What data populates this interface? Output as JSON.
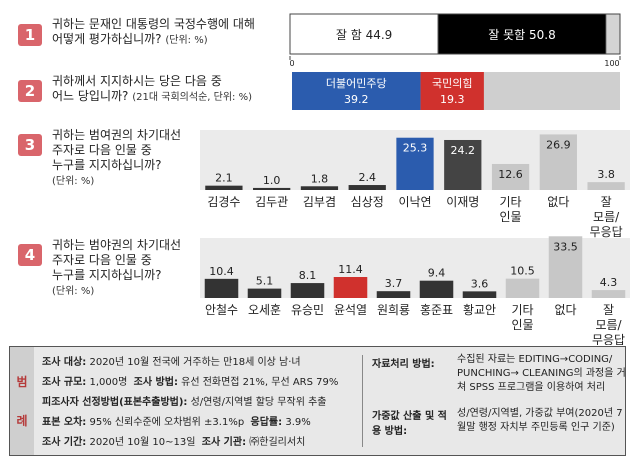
{
  "questions": [
    {
      "num": "1",
      "line1": "귀하는 문재인 대통령의 국정수행에 대해",
      "line2": "어떻게 평가하십니까?",
      "note": "(단위: %)"
    },
    {
      "num": "2",
      "line1": "귀하께서 지지하시는 당은 다음 중",
      "line2": "어느 당입니까?",
      "note": "(21대 국회의석순, 단위: %)"
    },
    {
      "num": "3",
      "line1": "귀하는 범여권의 차기대선",
      "line2": "주자로 다음 인물 중",
      "line3": "누구를 지지하십니까?",
      "note": "(단위: %)"
    },
    {
      "num": "4",
      "line1": "귀하는 범야권의 차기대선",
      "line2": "주자로 다음 인물 중",
      "line3": "누구를 지지하십니까?",
      "note": "(단위: %)"
    }
  ],
  "chart_data": [
    {
      "type": "bar",
      "orientation": "horizontal-stacked",
      "categories": [
        "잘 함",
        "잘 못함"
      ],
      "values": [
        44.9,
        50.8
      ],
      "axis_ticks": [
        "0",
        "100"
      ],
      "xlim": [
        0,
        100
      ],
      "colors": [
        "#ffffff",
        "#000000"
      ]
    },
    {
      "type": "bar",
      "orientation": "horizontal-stacked",
      "categories": [
        "더불어민주당",
        "국민의힘"
      ],
      "values": [
        39.2,
        19.3
      ],
      "xlim": [
        0,
        100
      ],
      "colors": [
        "#2b5cae",
        "#d0312d"
      ]
    },
    {
      "type": "bar",
      "categories": [
        "김경수",
        "김두관",
        "김부겸",
        "심상정",
        "이낙연",
        "이재명",
        "기타 인물",
        "없다",
        "잘 모름/ 무응답"
      ],
      "values": [
        2.1,
        1.0,
        1.8,
        2.4,
        25.3,
        24.2,
        12.6,
        26.9,
        3.8
      ],
      "value_labels": [
        "2.1",
        "1.0",
        "1.8",
        "2.4",
        "25.3",
        "24.2",
        "12.6",
        "26.9",
        "3.8"
      ],
      "ylim": [
        0,
        30
      ],
      "colors": [
        "#333333",
        "#333333",
        "#333333",
        "#333333",
        "#2b5cae",
        "#444444",
        "#c7c7c7",
        "#c7c7c7",
        "#c7c7c7"
      ],
      "label_colors": [
        "#222222",
        "#222222",
        "#222222",
        "#222222",
        "#ffffff",
        "#ffffff",
        "#222222",
        "#222222",
        "#222222"
      ]
    },
    {
      "type": "bar",
      "categories": [
        "안철수",
        "오세훈",
        "유승민",
        "윤석열",
        "원희룡",
        "홍준표",
        "황교안",
        "기타 인물",
        "없다",
        "잘 모름/ 무응답"
      ],
      "values": [
        10.4,
        5.1,
        8.1,
        11.4,
        3.7,
        9.4,
        3.6,
        10.5,
        33.5,
        4.3
      ],
      "value_labels": [
        "10.4",
        "5.1",
        "8.1",
        "11.4",
        "3.7",
        "9.4",
        "3.6",
        "10.5",
        "33.5",
        "4.3"
      ],
      "ylim": [
        0,
        38
      ],
      "colors": [
        "#333333",
        "#333333",
        "#333333",
        "#d0312d",
        "#333333",
        "#333333",
        "#333333",
        "#c7c7c7",
        "#c7c7c7",
        "#c7c7c7"
      ],
      "label_colors": [
        "#222222",
        "#222222",
        "#222222",
        "#222222",
        "#222222",
        "#222222",
        "#222222",
        "#222222",
        "#222222",
        "#222222"
      ]
    }
  ],
  "legend": {
    "tab_chars": [
      "범",
      "례"
    ],
    "left": [
      {
        "label": "조사 대상:",
        "text": "2020년 10월 전국에 거주하는 만18세 이상 남·녀"
      },
      {
        "label": "조사 규모:",
        "text": "1,000명",
        "label2": "조사 방법:",
        "text2": "유선 전화면접 21%, 무선 ARS 79%"
      },
      {
        "label": "피조사자 선정방법(표본추출방법):",
        "text": "성/연령/지역별 할당 무작위 추출"
      },
      {
        "label": "표본 오차:",
        "text": "95% 신뢰수준에 오차범위 ±3.1%p",
        "label2": "응답률:",
        "text2": "3.9%"
      },
      {
        "label": "조사 기간:",
        "text": "2020년 10월 10~13일",
        "label2": "조사 기관:",
        "text2": "㈜한길리서치"
      }
    ],
    "right": [
      {
        "label": "자료처리 방법:",
        "text": "수집된 자료는 EDITING→CODING/ PUNCHING→ CLEANING의 과정을 거쳐 SPSS 프로그램을 이용하여 처리"
      },
      {
        "label": "가중값 산출 및 적용 방법:",
        "text": "성/연령/지역별, 가중값 부여(2020년 7월말 행정 자치부 주민등록 인구 기준)"
      }
    ]
  }
}
